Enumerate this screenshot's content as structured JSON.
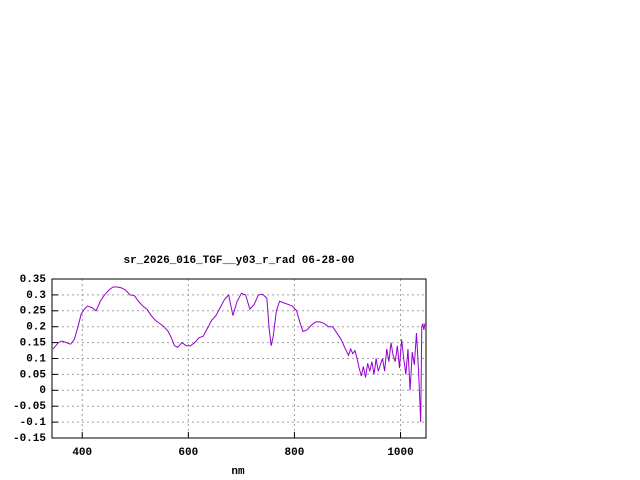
{
  "chart_data": {
    "type": "line",
    "title": "sr_2026_016_TGF__y03_r_rad 06-28-00",
    "xlabel": "nm",
    "x": [
      345,
      355,
      362,
      370,
      378,
      385,
      392,
      398,
      404,
      410,
      418,
      426,
      434,
      442,
      450,
      458,
      466,
      474,
      482,
      490,
      498,
      506,
      514,
      522,
      530,
      538,
      546,
      554,
      562,
      568,
      574,
      580,
      588,
      596,
      604,
      612,
      620,
      628,
      636,
      644,
      652,
      660,
      668,
      676,
      684,
      692,
      700,
      708,
      716,
      724,
      732,
      740,
      748,
      752,
      756,
      760,
      766,
      772,
      780,
      788,
      796,
      804,
      810,
      816,
      824,
      832,
      840,
      848,
      856,
      864,
      872,
      880,
      888,
      896,
      902,
      906,
      910,
      914,
      918,
      922,
      926,
      930,
      934,
      938,
      942,
      946,
      950,
      954,
      958,
      962,
      966,
      970,
      974,
      978,
      982,
      986,
      990,
      994,
      998,
      1002,
      1006,
      1010,
      1014,
      1018,
      1022,
      1026,
      1030,
      1034,
      1036,
      1038,
      1040,
      1042,
      1044,
      1046
    ],
    "series": [
      {
        "color": "#9400d3",
        "values": [
          0.13,
          0.15,
          0.155,
          0.15,
          0.145,
          0.16,
          0.2,
          0.24,
          0.255,
          0.265,
          0.26,
          0.25,
          0.28,
          0.3,
          0.315,
          0.325,
          0.325,
          0.322,
          0.315,
          0.3,
          0.298,
          0.28,
          0.265,
          0.255,
          0.235,
          0.22,
          0.21,
          0.2,
          0.185,
          0.165,
          0.14,
          0.135,
          0.15,
          0.14,
          0.14,
          0.15,
          0.165,
          0.17,
          0.195,
          0.22,
          0.235,
          0.26,
          0.285,
          0.3,
          0.235,
          0.28,
          0.305,
          0.3,
          0.255,
          0.27,
          0.3,
          0.302,
          0.29,
          0.2,
          0.14,
          0.17,
          0.25,
          0.28,
          0.275,
          0.27,
          0.265,
          0.25,
          0.215,
          0.185,
          0.19,
          0.205,
          0.215,
          0.215,
          0.21,
          0.2,
          0.2,
          0.18,
          0.16,
          0.13,
          0.11,
          0.13,
          0.115,
          0.125,
          0.1,
          0.07,
          0.045,
          0.075,
          0.04,
          0.085,
          0.06,
          0.09,
          0.05,
          0.1,
          0.06,
          0.08,
          0.1,
          0.06,
          0.13,
          0.09,
          0.15,
          0.11,
          0.09,
          0.14,
          0.07,
          0.16,
          0.1,
          0.05,
          0.13,
          0.0,
          0.12,
          0.08,
          0.18,
          0.06,
          -0.02,
          -0.1,
          0.2,
          0.21,
          0.19,
          0.21
        ]
      }
    ],
    "xlim": [
      343,
      1048
    ],
    "xticks": [
      400,
      600,
      800,
      1000
    ],
    "ylim": [
      -0.15,
      0.35
    ],
    "yticks": [
      0.35,
      0.3,
      0.25,
      0.2,
      0.15,
      0.1,
      0.05,
      0,
      -0.05,
      -0.1,
      -0.15
    ],
    "grid": true
  }
}
